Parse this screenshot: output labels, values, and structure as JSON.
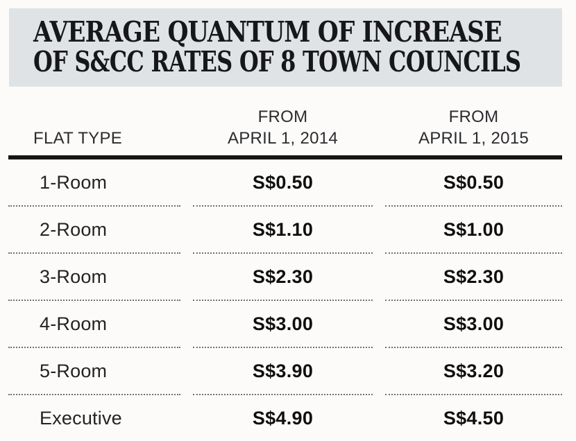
{
  "title": {
    "line1": "AVERAGE QUANTUM OF INCREASE",
    "line2": "OF S&CC RATES OF 8 TOWN COUNCILS"
  },
  "table": {
    "header": {
      "col1": "FLAT TYPE",
      "col2_line1": "FROM",
      "col2_line2": "APRIL 1, 2014",
      "col3_line1": "FROM",
      "col3_line2": "APRIL 1, 2015"
    },
    "rows": [
      {
        "flat_type": "1-Room",
        "from_2014": "S$0.50",
        "from_2015": "S$0.50"
      },
      {
        "flat_type": "2-Room",
        "from_2014": "S$1.10",
        "from_2015": "S$1.00"
      },
      {
        "flat_type": "3-Room",
        "from_2014": "S$2.30",
        "from_2015": "S$2.30"
      },
      {
        "flat_type": "4-Room",
        "from_2014": "S$3.00",
        "from_2015": "S$3.00"
      },
      {
        "flat_type": "5-Room",
        "from_2014": "S$3.90",
        "from_2015": "S$3.20"
      },
      {
        "flat_type": "Executive",
        "from_2014": "S$4.90",
        "from_2015": "S$4.50"
      }
    ]
  },
  "colors": {
    "title_bg": "#dfe3e6",
    "page_bg": "#fcfbf9",
    "title_text": "#17171a",
    "rule": "#151515",
    "dotted_separator": "#6f6f6f"
  },
  "chart_data": {
    "type": "table",
    "title": "AVERAGE QUANTUM OF INCREASE OF S&CC RATES OF 8 TOWN COUNCILS",
    "columns": [
      "FLAT TYPE",
      "FROM APRIL 1, 2014",
      "FROM APRIL 1, 2015"
    ],
    "rows": [
      [
        "1-Room",
        "S$0.50",
        "S$0.50"
      ],
      [
        "2-Room",
        "S$1.10",
        "S$1.00"
      ],
      [
        "3-Room",
        "S$2.30",
        "S$2.30"
      ],
      [
        "4-Room",
        "S$3.00",
        "S$3.00"
      ],
      [
        "5-Room",
        "S$3.90",
        "S$3.20"
      ],
      [
        "Executive",
        "S$4.90",
        "S$4.50"
      ]
    ]
  }
}
